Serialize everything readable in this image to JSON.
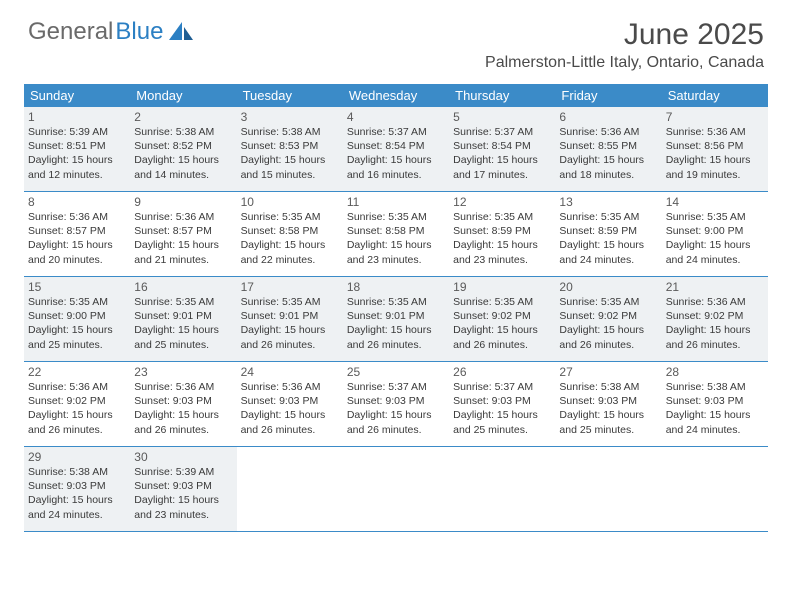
{
  "logo": {
    "word1": "General",
    "word2": "Blue"
  },
  "title": "June 2025",
  "location": "Palmerston-Little Italy, Ontario, Canada",
  "colors": {
    "header_bg": "#3b8bc8",
    "header_text": "#ffffff",
    "shade_bg": "#eef1f3",
    "border": "#3b8bc8",
    "text": "#3a3a3a",
    "logo_gray": "#6a6a6a",
    "logo_blue": "#2b7fc3"
  },
  "day_names": [
    "Sunday",
    "Monday",
    "Tuesday",
    "Wednesday",
    "Thursday",
    "Friday",
    "Saturday"
  ],
  "weeks": [
    {
      "shade": true,
      "days": [
        {
          "n": "1",
          "sr": "5:39 AM",
          "ss": "8:51 PM",
          "d1": "15 hours",
          "d2": "12 minutes."
        },
        {
          "n": "2",
          "sr": "5:38 AM",
          "ss": "8:52 PM",
          "d1": "15 hours",
          "d2": "14 minutes."
        },
        {
          "n": "3",
          "sr": "5:38 AM",
          "ss": "8:53 PM",
          "d1": "15 hours",
          "d2": "15 minutes."
        },
        {
          "n": "4",
          "sr": "5:37 AM",
          "ss": "8:54 PM",
          "d1": "15 hours",
          "d2": "16 minutes."
        },
        {
          "n": "5",
          "sr": "5:37 AM",
          "ss": "8:54 PM",
          "d1": "15 hours",
          "d2": "17 minutes."
        },
        {
          "n": "6",
          "sr": "5:36 AM",
          "ss": "8:55 PM",
          "d1": "15 hours",
          "d2": "18 minutes."
        },
        {
          "n": "7",
          "sr": "5:36 AM",
          "ss": "8:56 PM",
          "d1": "15 hours",
          "d2": "19 minutes."
        }
      ]
    },
    {
      "shade": false,
      "days": [
        {
          "n": "8",
          "sr": "5:36 AM",
          "ss": "8:57 PM",
          "d1": "15 hours",
          "d2": "20 minutes."
        },
        {
          "n": "9",
          "sr": "5:36 AM",
          "ss": "8:57 PM",
          "d1": "15 hours",
          "d2": "21 minutes."
        },
        {
          "n": "10",
          "sr": "5:35 AM",
          "ss": "8:58 PM",
          "d1": "15 hours",
          "d2": "22 minutes."
        },
        {
          "n": "11",
          "sr": "5:35 AM",
          "ss": "8:58 PM",
          "d1": "15 hours",
          "d2": "23 minutes."
        },
        {
          "n": "12",
          "sr": "5:35 AM",
          "ss": "8:59 PM",
          "d1": "15 hours",
          "d2": "23 minutes."
        },
        {
          "n": "13",
          "sr": "5:35 AM",
          "ss": "8:59 PM",
          "d1": "15 hours",
          "d2": "24 minutes."
        },
        {
          "n": "14",
          "sr": "5:35 AM",
          "ss": "9:00 PM",
          "d1": "15 hours",
          "d2": "24 minutes."
        }
      ]
    },
    {
      "shade": true,
      "days": [
        {
          "n": "15",
          "sr": "5:35 AM",
          "ss": "9:00 PM",
          "d1": "15 hours",
          "d2": "25 minutes."
        },
        {
          "n": "16",
          "sr": "5:35 AM",
          "ss": "9:01 PM",
          "d1": "15 hours",
          "d2": "25 minutes."
        },
        {
          "n": "17",
          "sr": "5:35 AM",
          "ss": "9:01 PM",
          "d1": "15 hours",
          "d2": "26 minutes."
        },
        {
          "n": "18",
          "sr": "5:35 AM",
          "ss": "9:01 PM",
          "d1": "15 hours",
          "d2": "26 minutes."
        },
        {
          "n": "19",
          "sr": "5:35 AM",
          "ss": "9:02 PM",
          "d1": "15 hours",
          "d2": "26 minutes."
        },
        {
          "n": "20",
          "sr": "5:35 AM",
          "ss": "9:02 PM",
          "d1": "15 hours",
          "d2": "26 minutes."
        },
        {
          "n": "21",
          "sr": "5:36 AM",
          "ss": "9:02 PM",
          "d1": "15 hours",
          "d2": "26 minutes."
        }
      ]
    },
    {
      "shade": false,
      "days": [
        {
          "n": "22",
          "sr": "5:36 AM",
          "ss": "9:02 PM",
          "d1": "15 hours",
          "d2": "26 minutes."
        },
        {
          "n": "23",
          "sr": "5:36 AM",
          "ss": "9:03 PM",
          "d1": "15 hours",
          "d2": "26 minutes."
        },
        {
          "n": "24",
          "sr": "5:36 AM",
          "ss": "9:03 PM",
          "d1": "15 hours",
          "d2": "26 minutes."
        },
        {
          "n": "25",
          "sr": "5:37 AM",
          "ss": "9:03 PM",
          "d1": "15 hours",
          "d2": "26 minutes."
        },
        {
          "n": "26",
          "sr": "5:37 AM",
          "ss": "9:03 PM",
          "d1": "15 hours",
          "d2": "25 minutes."
        },
        {
          "n": "27",
          "sr": "5:38 AM",
          "ss": "9:03 PM",
          "d1": "15 hours",
          "d2": "25 minutes."
        },
        {
          "n": "28",
          "sr": "5:38 AM",
          "ss": "9:03 PM",
          "d1": "15 hours",
          "d2": "24 minutes."
        }
      ]
    },
    {
      "shade": true,
      "days": [
        {
          "n": "29",
          "sr": "5:38 AM",
          "ss": "9:03 PM",
          "d1": "15 hours",
          "d2": "24 minutes."
        },
        {
          "n": "30",
          "sr": "5:39 AM",
          "ss": "9:03 PM",
          "d1": "15 hours",
          "d2": "23 minutes."
        },
        null,
        null,
        null,
        null,
        null
      ]
    }
  ],
  "labels": {
    "sunrise": "Sunrise:",
    "sunset": "Sunset:",
    "daylight": "Daylight:",
    "and": "and"
  }
}
